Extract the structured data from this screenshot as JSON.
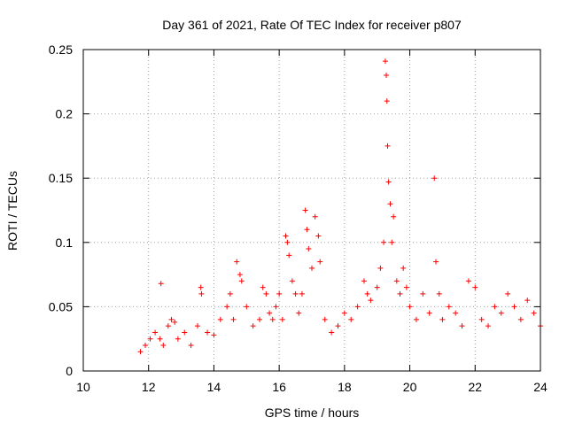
{
  "chart_data": {
    "type": "scatter",
    "title": "Day 361 of 2021, Rate Of TEC Index for receiver p807",
    "xlabel": "GPS time / hours",
    "ylabel": "ROTI / TECUs",
    "xlim": [
      10,
      24
    ],
    "ylim": [
      0,
      0.25
    ],
    "xticks": [
      10,
      12,
      14,
      16,
      18,
      20,
      22,
      24
    ],
    "xtick_labels": [
      "10",
      "12",
      "14",
      "16",
      "18",
      "20",
      "22",
      "24"
    ],
    "yticks": [
      0,
      0.05,
      0.1,
      0.15,
      0.2,
      0.25
    ],
    "ytick_labels": [
      "0",
      "0.05",
      "0.1",
      "0.15",
      "0.2",
      "0.25"
    ],
    "grid": true,
    "marker": "+",
    "series_color": "#ff0000",
    "series": [
      {
        "name": "ROTI",
        "x": [
          11.75,
          11.9,
          12.05,
          12.2,
          12.35,
          12.38,
          12.45,
          12.6,
          12.7,
          12.8,
          12.9,
          13.1,
          13.3,
          13.5,
          13.6,
          13.62,
          13.8,
          14.0,
          14.2,
          14.4,
          14.5,
          14.6,
          14.7,
          14.8,
          14.85,
          15.0,
          15.2,
          15.4,
          15.5,
          15.6,
          15.7,
          15.8,
          15.9,
          16.0,
          16.1,
          16.2,
          16.25,
          16.3,
          16.4,
          16.5,
          16.6,
          16.7,
          16.8,
          16.85,
          16.9,
          17.0,
          17.1,
          17.2,
          17.25,
          17.4,
          17.6,
          17.8,
          18.0,
          18.2,
          18.4,
          18.6,
          18.7,
          18.8,
          19.0,
          19.1,
          19.2,
          19.25,
          19.28,
          19.3,
          19.32,
          19.35,
          19.4,
          19.45,
          19.5,
          19.6,
          19.7,
          19.8,
          19.9,
          20.0,
          20.2,
          20.4,
          20.6,
          20.75,
          20.8,
          20.9,
          21.0,
          21.2,
          21.4,
          21.6,
          21.8,
          22.0,
          22.2,
          22.4,
          22.6,
          22.8,
          23.0,
          23.2,
          23.4,
          23.6,
          23.8,
          24.0
        ],
        "y": [
          0.015,
          0.02,
          0.025,
          0.03,
          0.025,
          0.068,
          0.02,
          0.035,
          0.04,
          0.038,
          0.025,
          0.03,
          0.02,
          0.035,
          0.065,
          0.06,
          0.03,
          0.028,
          0.04,
          0.05,
          0.06,
          0.04,
          0.085,
          0.075,
          0.07,
          0.05,
          0.035,
          0.04,
          0.065,
          0.06,
          0.045,
          0.04,
          0.05,
          0.06,
          0.04,
          0.105,
          0.1,
          0.09,
          0.07,
          0.06,
          0.045,
          0.06,
          0.125,
          0.11,
          0.095,
          0.08,
          0.12,
          0.105,
          0.085,
          0.04,
          0.03,
          0.035,
          0.045,
          0.04,
          0.05,
          0.07,
          0.06,
          0.055,
          0.065,
          0.08,
          0.1,
          0.241,
          0.23,
          0.21,
          0.175,
          0.147,
          0.13,
          0.1,
          0.12,
          0.07,
          0.06,
          0.08,
          0.065,
          0.05,
          0.04,
          0.06,
          0.045,
          0.15,
          0.085,
          0.06,
          0.04,
          0.05,
          0.045,
          0.035,
          0.07,
          0.065,
          0.04,
          0.035,
          0.05,
          0.045,
          0.06,
          0.05,
          0.04,
          0.055,
          0.045,
          0.035
        ]
      }
    ]
  }
}
